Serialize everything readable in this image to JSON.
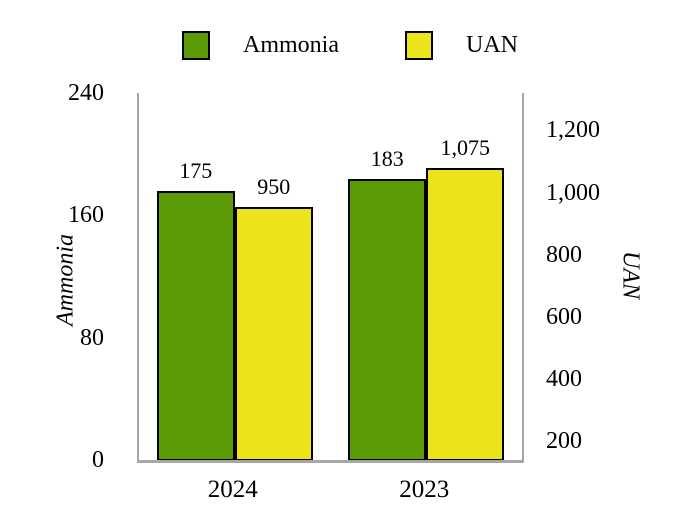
{
  "page": {
    "background_color": "#ffffff",
    "text_color": "#000000"
  },
  "legend": {
    "position": "top",
    "items": [
      {
        "label": "Ammonia",
        "color": "#5b9b05"
      },
      {
        "label": "UAN",
        "color": "#ece31a"
      }
    ]
  },
  "chart_data": {
    "type": "bar",
    "title": "",
    "categories": [
      "2024",
      "2023"
    ],
    "series": [
      {
        "name": "Ammonia",
        "axis": "left",
        "color": "#5b9b05",
        "values": [
          175,
          183
        ],
        "labels": [
          "175",
          "183"
        ]
      },
      {
        "name": "UAN",
        "axis": "right",
        "color": "#ece31a",
        "values": [
          950,
          1075
        ],
        "labels": [
          "950",
          "1,075"
        ]
      }
    ],
    "axes": {
      "left": {
        "title": "Ammonia",
        "min": 0,
        "max": 240,
        "ticks": [
          0,
          80,
          160,
          240
        ],
        "tick_labels": [
          "0",
          "80",
          "160",
          "240"
        ]
      },
      "right": {
        "title": "UAN",
        "min": 140,
        "max": 1320,
        "ticks": [
          200,
          400,
          600,
          800,
          1000,
          1200
        ],
        "tick_labels": [
          "200",
          "400",
          "600",
          "800",
          "1,000",
          "1,200"
        ]
      }
    },
    "style": {
      "bar_border_color": "#000000",
      "axis_line_color": "#a6a6a6",
      "data_labels_shown": true,
      "gridlines": false,
      "legend_position": "top"
    }
  }
}
